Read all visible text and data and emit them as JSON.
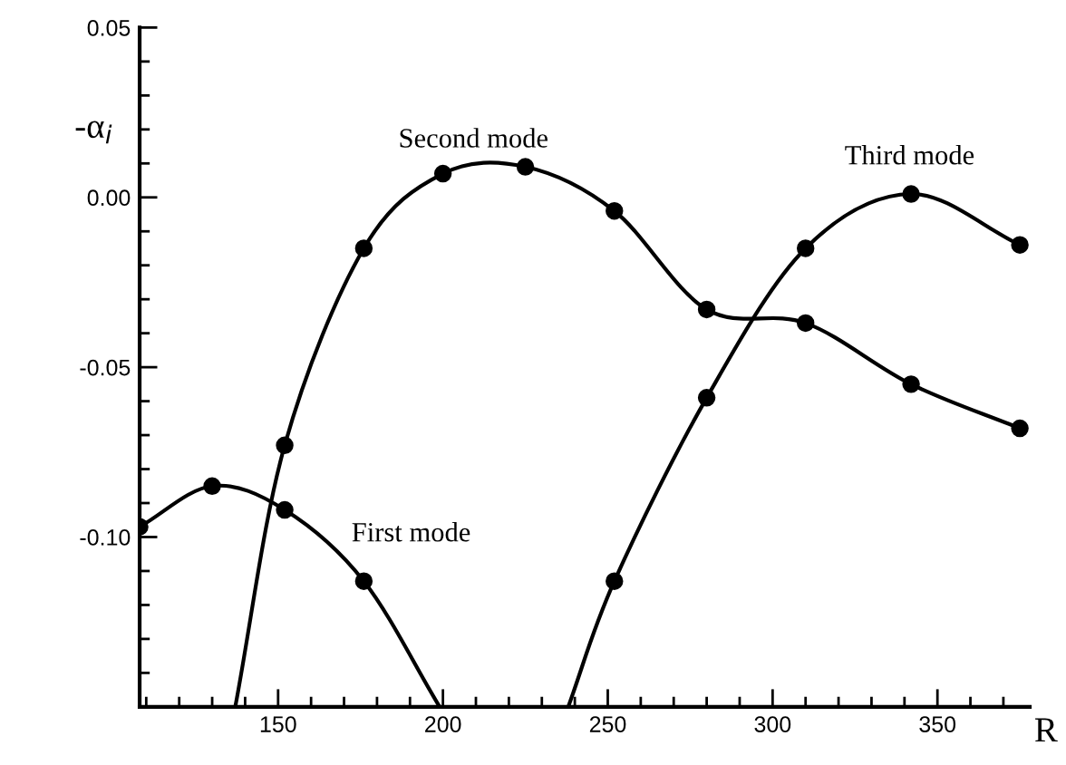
{
  "chart_data": {
    "type": "line",
    "ylabel": "-α$_{i}$",
    "xlabel": "R",
    "series": [
      {
        "marker": "none",
        "color": "#000000",
        "x": [
          108,
          130,
          152,
          176,
          199
        ],
        "values": [
          -0.097,
          -0.085,
          -0.092,
          -0.113,
          -0.15
        ]
      },
      {
        "marker": "none",
        "color": "#000000",
        "x": [
          137,
          152,
          176,
          200,
          225,
          252,
          280,
          310,
          342,
          375
        ],
        "values": [
          -0.15,
          -0.073,
          -0.015,
          0.007,
          0.009,
          -0.004,
          -0.033,
          -0.037,
          -0.055,
          -0.068
        ]
      },
      {
        "marker": "none",
        "color": "#000000",
        "x": [
          238,
          252,
          280,
          310,
          342,
          375
        ],
        "values": [
          -0.15,
          -0.113,
          -0.059,
          -0.015,
          0.001,
          -0.014
        ]
      },
      {
        "type": "scatter",
        "marker": "circle",
        "color": "#000000",
        "x": [
          108,
          130,
          152,
          176
        ],
        "values": [
          -0.097,
          -0.085,
          -0.092,
          -0.113
        ]
      },
      {
        "type": "scatter",
        "marker": "circle",
        "color": "#000000",
        "x": [
          152,
          176,
          200,
          225,
          252,
          280,
          310,
          342,
          375
        ],
        "values": [
          -0.073,
          -0.015,
          0.007,
          0.009,
          -0.004,
          -0.033,
          -0.037,
          -0.055,
          -0.068
        ]
      },
      {
        "type": "scatter",
        "marker": "circle",
        "color": "#000000",
        "x": [
          252,
          280,
          310,
          342,
          375
        ],
        "values": [
          -0.113,
          -0.059,
          -0.015,
          0.001,
          -0.014
        ]
      }
    ],
    "annotations": [
      "First mode",
      "Second mode",
      "Third mode"
    ],
    "xlim": [
      108,
      378
    ],
    "xticks": [
      {
        "value": 110,
        "label": null
      },
      {
        "value": 120,
        "label": null
      },
      {
        "value": 130,
        "label": null
      },
      {
        "value": 140,
        "label": null
      },
      150,
      {
        "value": 160,
        "label": null
      },
      {
        "value": 170,
        "label": null
      },
      {
        "value": 180,
        "label": null
      },
      {
        "value": 190,
        "label": null
      },
      200,
      {
        "value": 210,
        "label": null
      },
      {
        "value": 220,
        "label": null
      },
      {
        "value": 230,
        "label": null
      },
      {
        "value": 240,
        "label": null
      },
      250,
      {
        "value": 260,
        "label": null
      },
      {
        "value": 270,
        "label": null
      },
      {
        "value": 280,
        "label": null
      },
      {
        "value": 290,
        "label": null
      },
      300,
      {
        "value": 310,
        "label": null
      },
      {
        "value": 320,
        "label": null
      },
      {
        "value": 330,
        "label": null
      },
      {
        "value": 340,
        "label": null
      },
      350,
      {
        "value": 360,
        "label": null
      },
      {
        "value": 370,
        "label": null
      }
    ],
    "ylim": [
      -0.15,
      0.05
    ],
    "yticks": [
      {
        "value": -0.15,
        "label": null
      },
      {
        "value": -0.14,
        "label": null
      },
      {
        "value": -0.13,
        "label": null
      },
      {
        "value": -0.12,
        "label": null
      },
      {
        "value": -0.11,
        "label": null
      },
      {
        "value": -0.1,
        "label": "-0.10"
      },
      {
        "value": -0.09,
        "label": null
      },
      {
        "value": -0.08,
        "label": null
      },
      {
        "value": -0.07,
        "label": null
      },
      {
        "value": -0.06,
        "label": null
      },
      {
        "value": -0.05,
        "label": "-0.05"
      },
      {
        "value": -0.04,
        "label": null
      },
      {
        "value": -0.03,
        "label": null
      },
      {
        "value": -0.02,
        "label": null
      },
      {
        "value": -0.01,
        "label": null
      },
      {
        "value": 0.0,
        "label": "0.00"
      },
      {
        "value": 0.01,
        "label": null
      },
      {
        "value": 0.02,
        "label": null
      },
      {
        "value": 0.03,
        "label": null
      },
      {
        "value": 0.04,
        "label": null
      },
      {
        "value": 0.05,
        "label": "0.05"
      }
    ],
    "grid": false
  }
}
